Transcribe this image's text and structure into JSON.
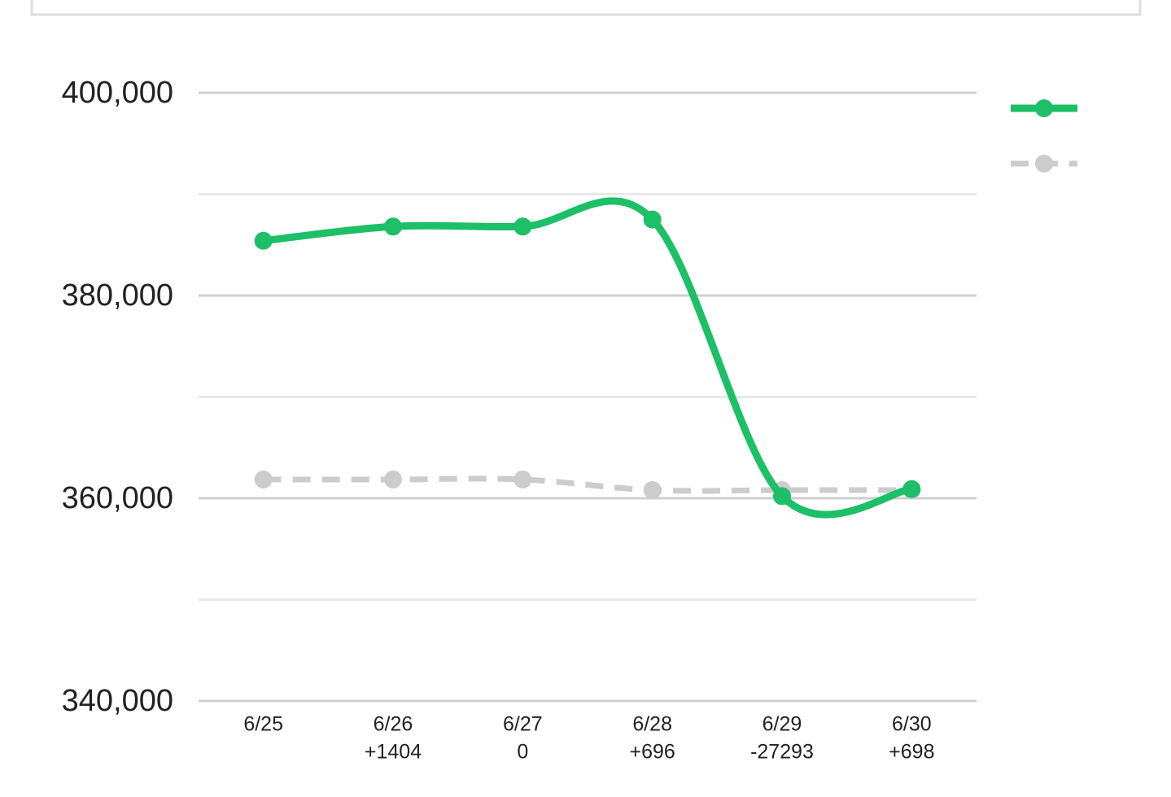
{
  "chart_data": {
    "type": "line",
    "categories": [
      "6/25",
      "6/26",
      "6/27",
      "6/28",
      "6/29",
      "6/30"
    ],
    "changes": [
      null,
      "+1404",
      "0",
      "+696",
      "-27293",
      "+698"
    ],
    "series": [
      {
        "color": "#1dbf67",
        "style": "solid",
        "values": [
          385400,
          386804,
          386804,
          387500,
          360207,
          360905
        ]
      },
      {
        "color": "#cccccc",
        "style": "dashed",
        "values": [
          361850,
          361850,
          361850,
          360800,
          360800,
          360800
        ]
      }
    ],
    "ylim": [
      340000,
      400000
    ],
    "yticks": [
      {
        "value": 340000,
        "label": "340,000"
      },
      {
        "value": 360000,
        "label": "360,000"
      },
      {
        "value": 380000,
        "label": "380,000"
      },
      {
        "value": 400000,
        "label": "400,000"
      }
    ],
    "minor_yticks": [
      350000,
      370000,
      390000
    ],
    "grid": true,
    "smooth": true,
    "legend": "top-right"
  }
}
